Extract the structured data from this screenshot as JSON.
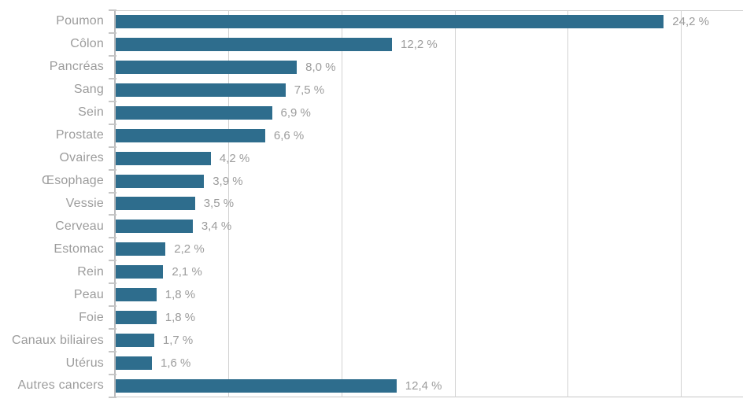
{
  "chart_data": {
    "type": "bar",
    "orientation": "horizontal",
    "title": "",
    "xlabel": "",
    "ylabel": "",
    "categories": [
      "Poumon",
      "Côlon",
      "Pancréas",
      "Sang",
      "Sein",
      "Prostate",
      "Ovaires",
      "Œsophage",
      "Vessie",
      "Cerveau",
      "Estomac",
      "Rein",
      "Peau",
      "Foie",
      "Canaux biliaires",
      "Utérus",
      "Autres cancers"
    ],
    "values": [
      24.2,
      12.2,
      8.0,
      7.5,
      6.9,
      6.6,
      4.2,
      3.9,
      3.5,
      3.4,
      2.2,
      2.1,
      1.8,
      1.8,
      1.7,
      1.6,
      12.4
    ],
    "value_labels": [
      "24,2 %",
      "12,2 %",
      "8,0 %",
      "7,5 %",
      "6,9 %",
      "6,6 %",
      "4,2 %",
      "3,9 %",
      "3,5 %",
      "3,4 %",
      "2,2 %",
      "2,1 %",
      "1,8 %",
      "1,8 %",
      "1,7 %",
      "1,6 %",
      "12,4 %"
    ],
    "xlim": [
      0,
      27.7
    ],
    "gridline_values": [
      5,
      10,
      15,
      20,
      25
    ],
    "grid": true,
    "legend": false,
    "colors": {
      "bar": "#2e6d8d",
      "grid": "#d2d2d2",
      "axis": "#b9babc",
      "tick": "#c6c6c6",
      "label_text": "#9c9c9c",
      "value_text": "#9c9c9c",
      "background": "#ffffff"
    }
  }
}
